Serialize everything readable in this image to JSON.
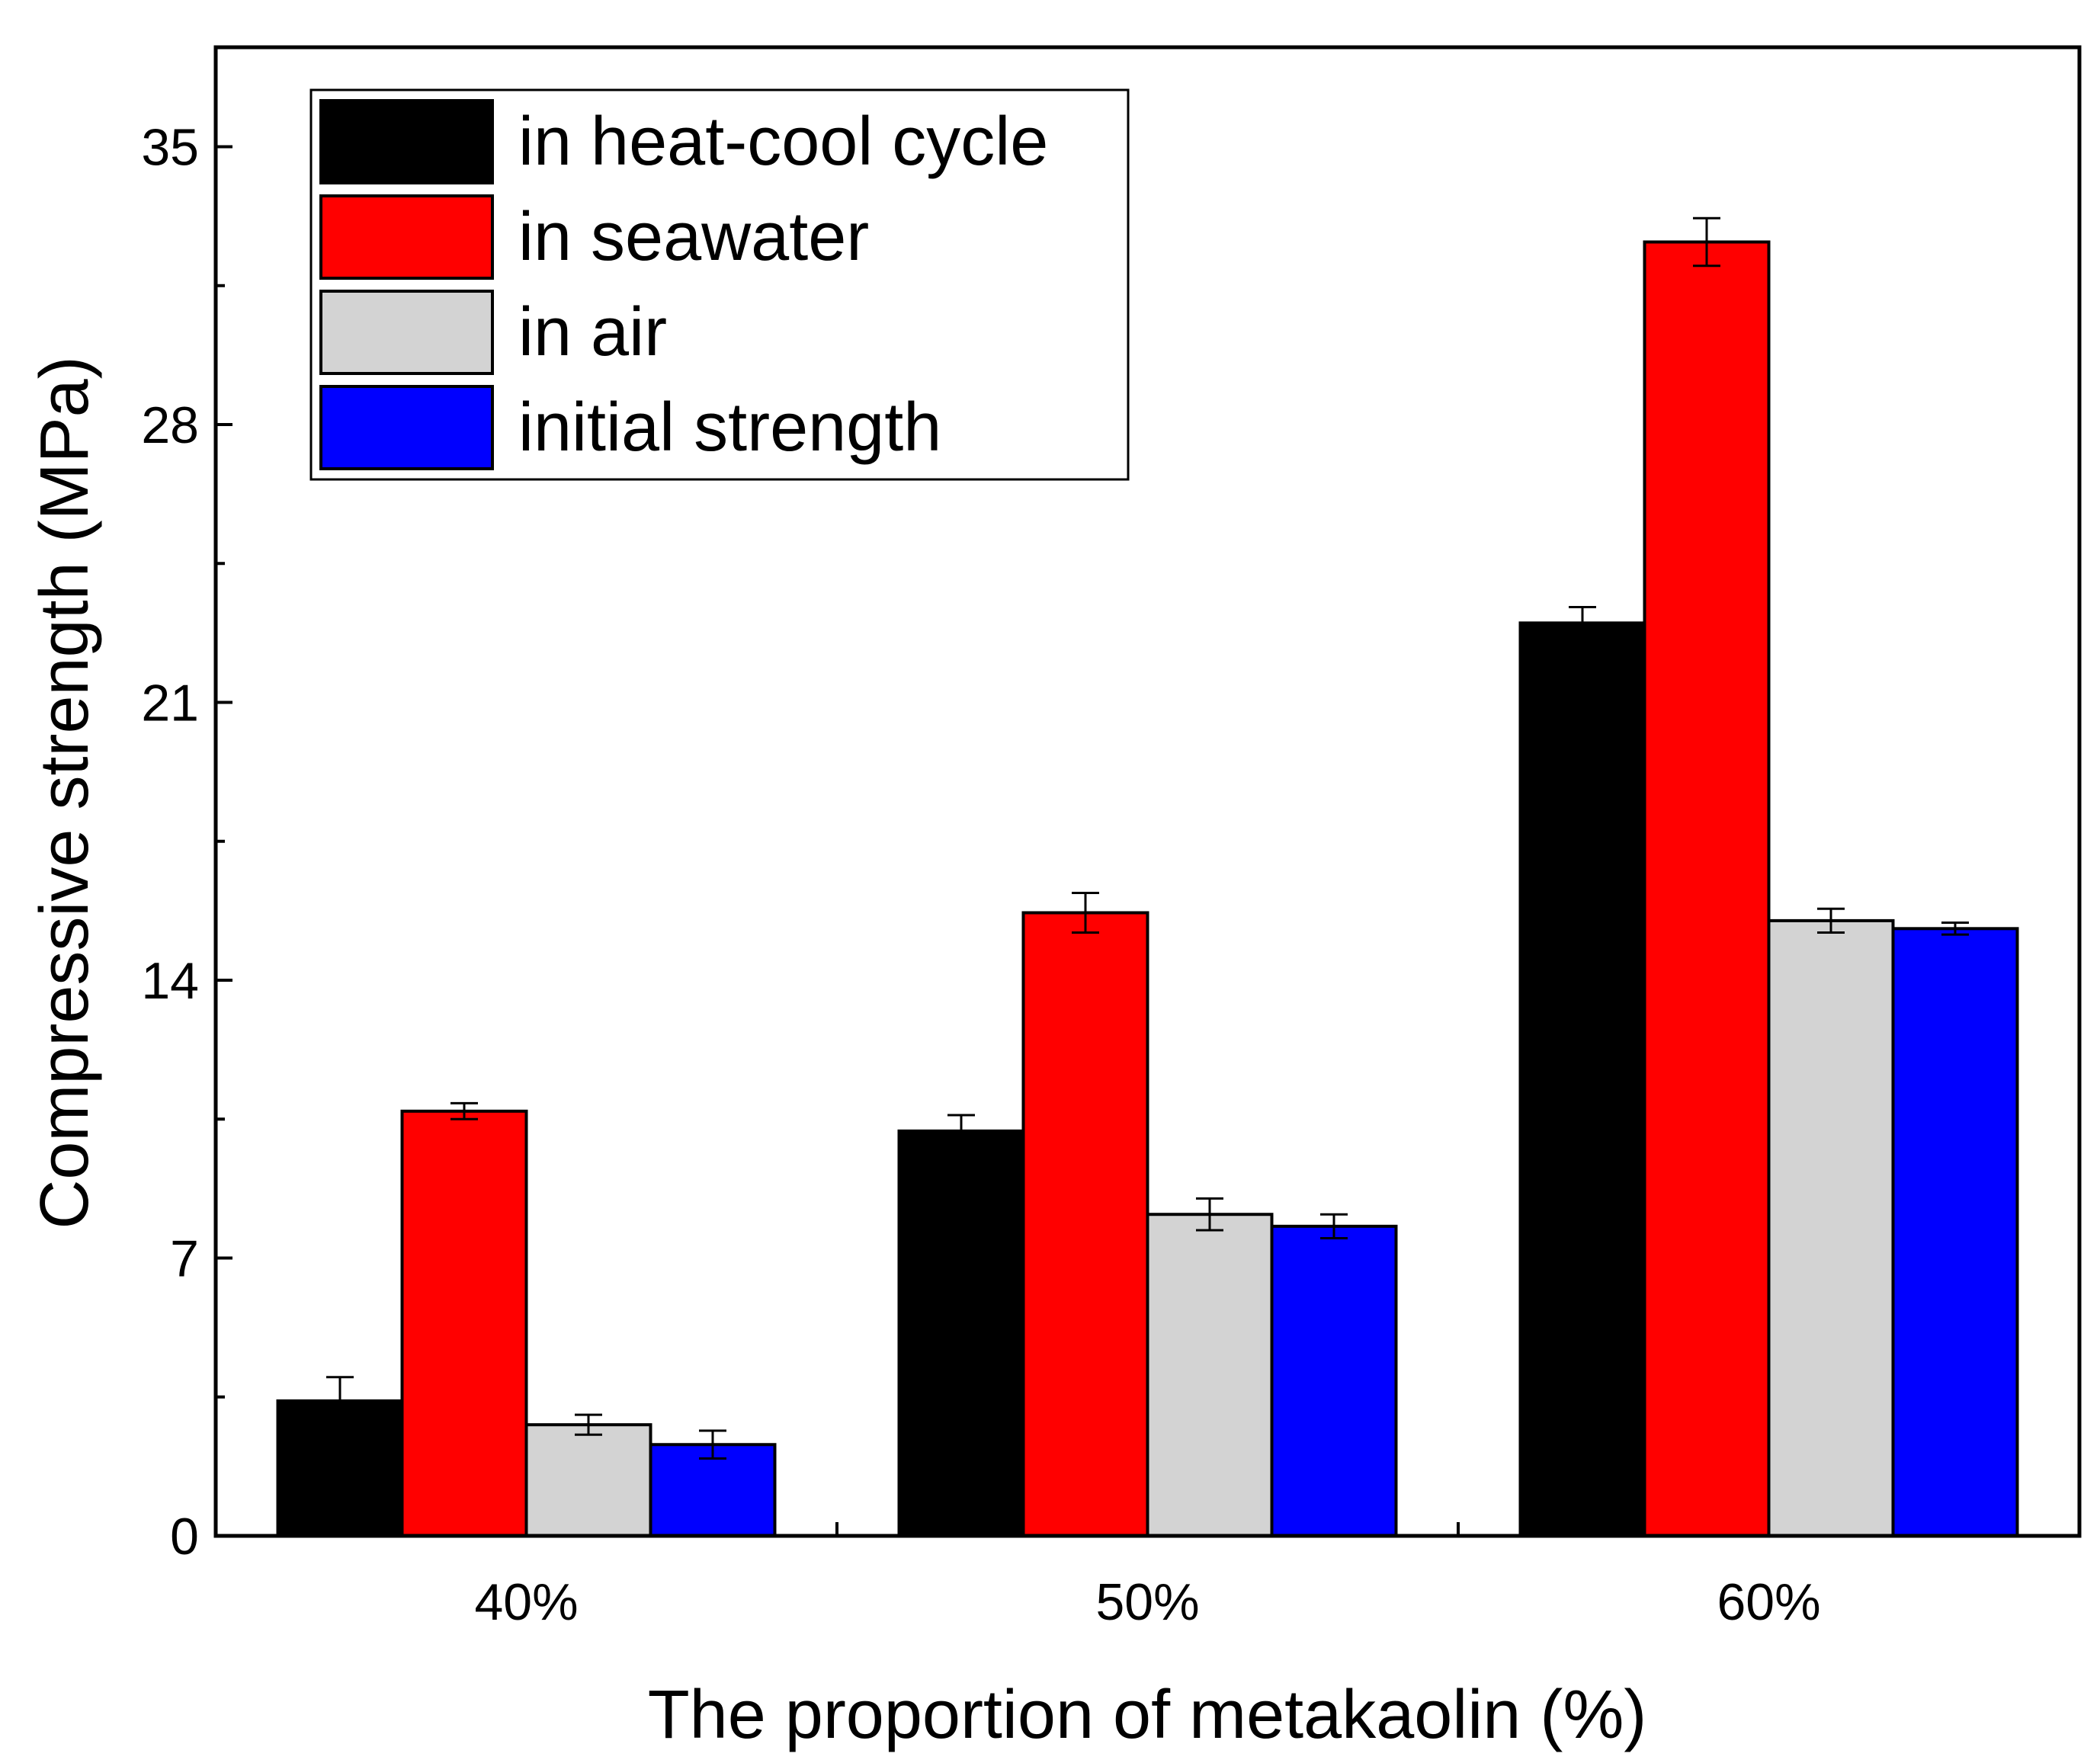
{
  "chart_data": {
    "type": "bar",
    "title": "",
    "xlabel": "The proportion of metakaolin (%)",
    "ylabel": "Compressive strength (MPa)",
    "categories": [
      "40%",
      "50%",
      "60%"
    ],
    "ylim": [
      0,
      37.5
    ],
    "yticks": [
      0,
      7,
      14,
      21,
      28,
      35
    ],
    "ytick_labels": [
      "0",
      "7",
      "14",
      "21",
      "28",
      "35"
    ],
    "grid": false,
    "legend_position": "top-left",
    "series": [
      {
        "name": "in heat-cool cycle",
        "color": "#000000",
        "values": [
          3.4,
          10.2,
          23.0
        ],
        "errors": [
          0.6,
          0.4,
          0.4
        ]
      },
      {
        "name": "in seawater",
        "color": "#ff0000",
        "values": [
          10.7,
          15.7,
          32.6
        ],
        "errors": [
          0.2,
          0.5,
          0.6
        ]
      },
      {
        "name": "in air",
        "color": "#d3d3d3",
        "values": [
          2.8,
          8.1,
          15.5
        ],
        "errors": [
          0.25,
          0.4,
          0.3
        ]
      },
      {
        "name": "initial strength",
        "color": "#0000ff",
        "values": [
          2.3,
          7.8,
          15.3
        ],
        "errors": [
          0.35,
          0.3,
          0.15
        ]
      }
    ]
  }
}
